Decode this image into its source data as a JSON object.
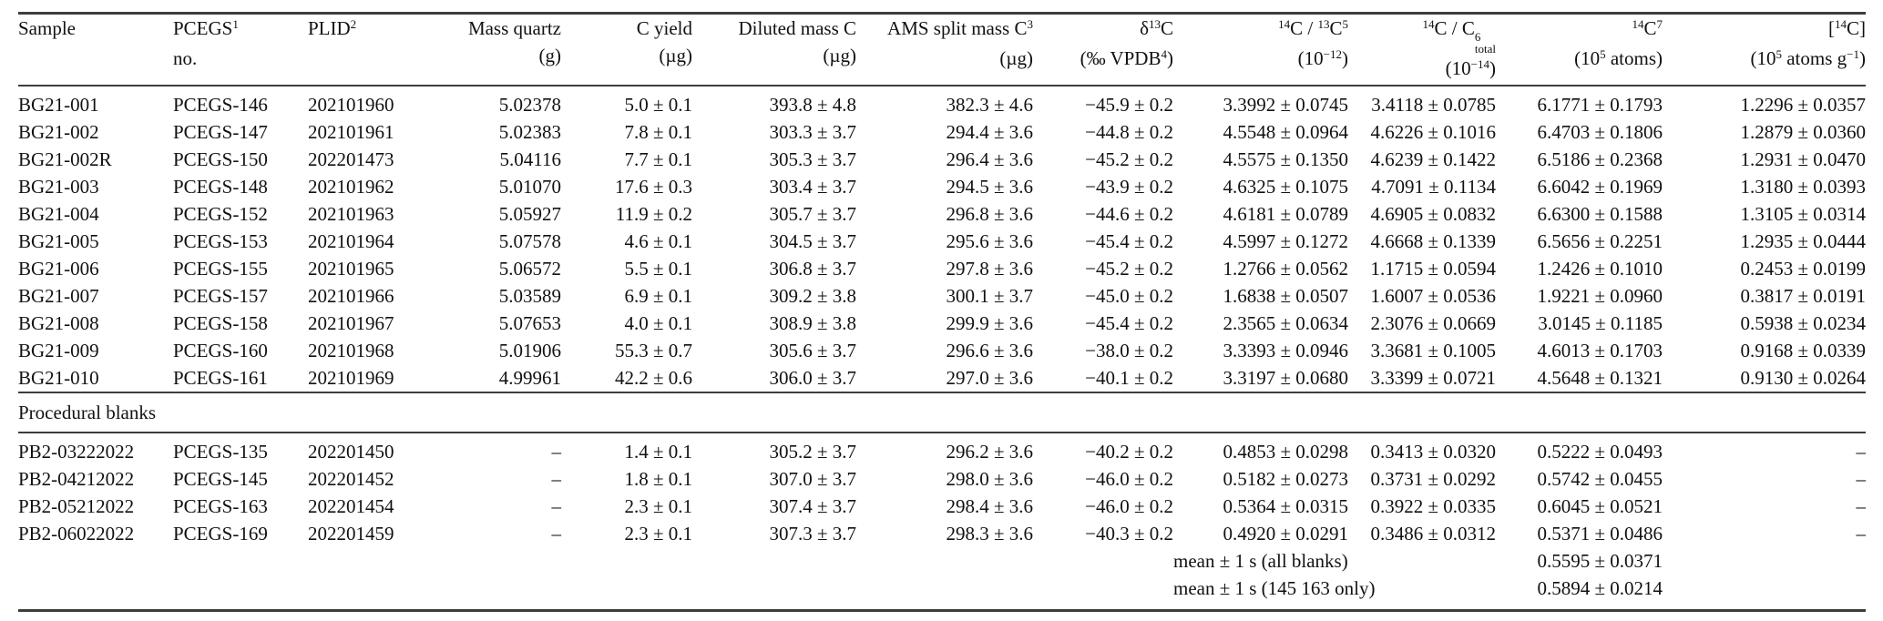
{
  "table": {
    "columns": [
      {
        "key": "sample",
        "align": "l",
        "header1": [
          {
            "t": "Sample"
          }
        ],
        "header2": []
      },
      {
        "key": "pcegs-no",
        "align": "l",
        "header1": [
          {
            "t": "PCEGS"
          },
          {
            "sup": "1"
          }
        ],
        "header2": [
          {
            "t": "no."
          }
        ]
      },
      {
        "key": "plid",
        "align": "l",
        "header1": [
          {
            "t": "PLID"
          },
          {
            "sup": "2"
          }
        ],
        "header2": []
      },
      {
        "key": "mass-quartz",
        "align": "r",
        "header1": [
          {
            "t": "Mass quartz"
          }
        ],
        "header2": [
          {
            "t": "(g)"
          }
        ]
      },
      {
        "key": "c-yield",
        "align": "r",
        "header1": [
          {
            "t": "C yield"
          }
        ],
        "header2": [
          {
            "t": "(µg)"
          }
        ]
      },
      {
        "key": "diluted-mass-c",
        "align": "r",
        "header1": [
          {
            "t": "Diluted mass C"
          }
        ],
        "header2": [
          {
            "t": "(µg)"
          }
        ]
      },
      {
        "key": "ams-split-mass-c",
        "align": "r",
        "header1": [
          {
            "t": "AMS split mass C"
          },
          {
            "sup": "3"
          }
        ],
        "header2": [
          {
            "t": "(µg)"
          }
        ]
      },
      {
        "key": "delta13c",
        "align": "r",
        "header1": [
          {
            "t": "δ"
          },
          {
            "sup": "13"
          },
          {
            "t": "C"
          }
        ],
        "header2": [
          {
            "t": "(‰ VPDB"
          },
          {
            "sup": "4"
          },
          {
            "t": ")"
          }
        ]
      },
      {
        "key": "c14-c13-ratio",
        "align": "r",
        "header1": [
          {
            "sup": "14"
          },
          {
            "t": "C / "
          },
          {
            "sup": "13"
          },
          {
            "t": "C"
          },
          {
            "sup": "5"
          }
        ],
        "header2": [
          {
            "t": "(10"
          },
          {
            "sup": "−12"
          },
          {
            "t": ")"
          }
        ]
      },
      {
        "key": "c14-ctotal-ratio",
        "align": "r",
        "header1": [
          {
            "sup": "14"
          },
          {
            "t": "C / C"
          },
          {
            "stack": {
              "sup": "6",
              "sub": "total"
            }
          }
        ],
        "header2": [
          {
            "t": "(10"
          },
          {
            "sup": "−14"
          },
          {
            "t": ")"
          }
        ]
      },
      {
        "key": "c14-atoms",
        "align": "r",
        "header1": [
          {
            "sup": "14"
          },
          {
            "t": "C"
          },
          {
            "sup": "7"
          }
        ],
        "header2": [
          {
            "t": "(10"
          },
          {
            "sup": "5"
          },
          {
            "t": " atoms)"
          }
        ]
      },
      {
        "key": "c14-concentration",
        "align": "r",
        "header1": [
          {
            "t": "["
          },
          {
            "sup": "14"
          },
          {
            "t": "C]"
          }
        ],
        "header2": [
          {
            "t": "(10"
          },
          {
            "sup": "5"
          },
          {
            "t": " atoms g"
          },
          {
            "sup": "−1"
          },
          {
            "t": ")"
          }
        ]
      }
    ],
    "sample_rows": [
      [
        "BG21-001",
        "PCEGS-146",
        "202101960",
        "5.02378",
        "5.0 ± 0.1",
        "393.8 ± 4.8",
        "382.3 ± 4.6",
        "−45.9 ± 0.2",
        "3.3992 ± 0.0745",
        "3.4118 ± 0.0785",
        "6.1771 ± 0.1793",
        "1.2296 ± 0.0357"
      ],
      [
        "BG21-002",
        "PCEGS-147",
        "202101961",
        "5.02383",
        "7.8 ± 0.1",
        "303.3 ± 3.7",
        "294.4 ± 3.6",
        "−44.8 ± 0.2",
        "4.5548 ± 0.0964",
        "4.6226 ± 0.1016",
        "6.4703 ± 0.1806",
        "1.2879 ± 0.0360"
      ],
      [
        "BG21-002R",
        "PCEGS-150",
        "202201473",
        "5.04116",
        "7.7 ± 0.1",
        "305.3 ± 3.7",
        "296.4 ± 3.6",
        "−45.2 ± 0.2",
        "4.5575 ± 0.1350",
        "4.6239 ± 0.1422",
        "6.5186 ± 0.2368",
        "1.2931 ± 0.0470"
      ],
      [
        "BG21-003",
        "PCEGS-148",
        "202101962",
        "5.01070",
        "17.6 ± 0.3",
        "303.4 ± 3.7",
        "294.5 ± 3.6",
        "−43.9 ± 0.2",
        "4.6325 ± 0.1075",
        "4.7091 ± 0.1134",
        "6.6042 ± 0.1969",
        "1.3180 ± 0.0393"
      ],
      [
        "BG21-004",
        "PCEGS-152",
        "202101963",
        "5.05927",
        "11.9 ± 0.2",
        "305.7 ± 3.7",
        "296.8 ± 3.6",
        "−44.6 ± 0.2",
        "4.6181 ± 0.0789",
        "4.6905 ± 0.0832",
        "6.6300 ± 0.1588",
        "1.3105 ± 0.0314"
      ],
      [
        "BG21-005",
        "PCEGS-153",
        "202101964",
        "5.07578",
        "4.6 ± 0.1",
        "304.5 ± 3.7",
        "295.6 ± 3.6",
        "−45.4 ± 0.2",
        "4.5997 ± 0.1272",
        "4.6668 ± 0.1339",
        "6.5656 ± 0.2251",
        "1.2935 ± 0.0444"
      ],
      [
        "BG21-006",
        "PCEGS-155",
        "202101965",
        "5.06572",
        "5.5 ± 0.1",
        "306.8 ± 3.7",
        "297.8 ± 3.6",
        "−45.2 ± 0.2",
        "1.2766 ± 0.0562",
        "1.1715 ± 0.0594",
        "1.2426 ± 0.1010",
        "0.2453 ± 0.0199"
      ],
      [
        "BG21-007",
        "PCEGS-157",
        "202101966",
        "5.03589",
        "6.9 ± 0.1",
        "309.2 ± 3.8",
        "300.1 ± 3.7",
        "−45.0 ± 0.2",
        "1.6838 ± 0.0507",
        "1.6007 ± 0.0536",
        "1.9221 ± 0.0960",
        "0.3817 ± 0.0191"
      ],
      [
        "BG21-008",
        "PCEGS-158",
        "202101967",
        "5.07653",
        "4.0 ± 0.1",
        "308.9 ± 3.8",
        "299.9 ± 3.6",
        "−45.4 ± 0.2",
        "2.3565 ± 0.0634",
        "2.3076 ± 0.0669",
        "3.0145 ± 0.1185",
        "0.5938 ± 0.0234"
      ],
      [
        "BG21-009",
        "PCEGS-160",
        "202101968",
        "5.01906",
        "55.3 ± 0.7",
        "305.6 ± 3.7",
        "296.6 ± 3.6",
        "−38.0 ± 0.2",
        "3.3393 ± 0.0946",
        "3.3681 ± 0.1005",
        "4.6013 ± 0.1703",
        "0.9168 ± 0.0339"
      ],
      [
        "BG21-010",
        "PCEGS-161",
        "202101969",
        "4.99961",
        "42.2 ± 0.6",
        "306.0 ± 3.7",
        "297.0 ± 3.6",
        "−40.1 ± 0.2",
        "3.3197 ± 0.0680",
        "3.3399 ± 0.0721",
        "4.5648 ± 0.1321",
        "0.9130 ± 0.0264"
      ]
    ],
    "section_label": "Procedural blanks",
    "blank_rows": [
      [
        "PB2-03222022",
        "PCEGS-135",
        "202201450",
        "–",
        "1.4 ± 0.1",
        "305.2 ± 3.7",
        "296.2 ± 3.6",
        "−40.2 ± 0.2",
        "0.4853 ± 0.0298",
        "0.3413 ± 0.0320",
        "0.5222 ± 0.0493",
        "–"
      ],
      [
        "PB2-04212022",
        "PCEGS-145",
        "202201452",
        "–",
        "1.8 ± 0.1",
        "307.0 ± 3.7",
        "298.0 ± 3.6",
        "−46.0 ± 0.2",
        "0.5182 ± 0.0273",
        "0.3731 ± 0.0292",
        "0.5742 ± 0.0455",
        "–"
      ],
      [
        "PB2-05212022",
        "PCEGS-163",
        "202201454",
        "–",
        "2.3 ± 0.1",
        "307.4 ± 3.7",
        "298.4 ± 3.6",
        "−46.0 ± 0.2",
        "0.5364 ± 0.0315",
        "0.3922 ± 0.0335",
        "0.6045 ± 0.0521",
        "–"
      ],
      [
        "PB2-06022022",
        "PCEGS-169",
        "202201459",
        "–",
        "2.3 ± 0.1",
        "307.3 ± 3.7",
        "298.3 ± 3.6",
        "−40.3 ± 0.2",
        "0.4920 ± 0.0291",
        "0.3486 ± 0.0312",
        "0.5371 ± 0.0486",
        "–"
      ]
    ],
    "summary_rows": [
      {
        "label": "mean ± 1 s (all blanks)",
        "c14_atoms": "0.5595 ± 0.0371"
      },
      {
        "label": "mean ± 1 s (145 163 only)",
        "c14_atoms": "0.5894 ± 0.0214"
      }
    ]
  }
}
